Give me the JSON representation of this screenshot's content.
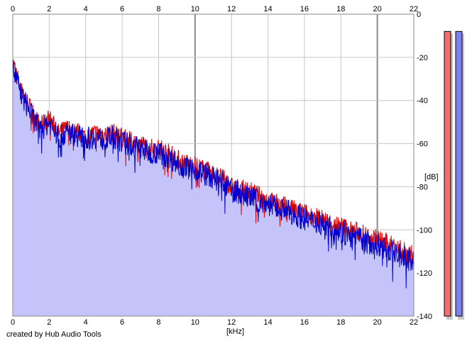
{
  "footer": {
    "credit": "created by Hub Audio Tools"
  },
  "colors": {
    "fill": "#c4c4fb",
    "grid_minor": "#c6c6c6",
    "grid_major": "#8a8a8a",
    "left_channel": "#e00000",
    "right_channel": "#0000d0",
    "meter_left": "#f07070",
    "meter_right": "#8080f0"
  },
  "chart_data": {
    "type": "line",
    "title": "",
    "xlabel": "[kHz]",
    "ylabel": "[dB]",
    "x_ticks_top": [
      "0",
      "2",
      "4",
      "6",
      "8",
      "10",
      "12",
      "14",
      "16",
      "18",
      "20",
      "22"
    ],
    "x_ticks_bottom": [
      "0",
      "2",
      "4",
      "6",
      "8",
      "10",
      "12",
      "14",
      "16",
      "18",
      "20",
      "22"
    ],
    "y_ticks": [
      "0",
      "-20",
      "-40",
      "-60",
      "-80",
      "-100",
      "-120",
      "-140"
    ],
    "xlim": [
      0,
      22
    ],
    "ylim": [
      -140,
      0
    ],
    "grid": true,
    "legend": "none",
    "series": [
      {
        "color": "#e00000",
        "x": [
          0,
          0.5,
          1,
          1.5,
          2,
          2.5,
          3,
          3.5,
          4,
          4.5,
          5,
          5.5,
          6,
          6.5,
          7,
          7.5,
          8,
          8.5,
          9,
          9.5,
          10,
          10.5,
          11,
          11.5,
          12,
          12.5,
          13,
          13.5,
          14,
          14.5,
          15,
          15.5,
          16,
          16.5,
          17,
          17.5,
          18,
          18.5,
          19,
          19.5,
          20,
          20.5,
          21,
          21.5,
          22
        ],
        "y": [
          -22,
          -36,
          -44,
          -52,
          -48,
          -55,
          -53,
          -54,
          -57,
          -55,
          -56,
          -55,
          -57,
          -59,
          -60,
          -62,
          -62,
          -64,
          -67,
          -69,
          -70,
          -72,
          -74,
          -76,
          -80,
          -81,
          -82,
          -84,
          -86,
          -88,
          -89,
          -91,
          -92,
          -94,
          -95,
          -97,
          -98,
          -100,
          -101,
          -103,
          -104,
          -106,
          -108,
          -110,
          -112
        ]
      },
      {
        "color": "#0000d0",
        "x": [
          0,
          0.5,
          1,
          1.5,
          2,
          2.5,
          3,
          3.5,
          4,
          4.5,
          5,
          5.5,
          6,
          6.5,
          7,
          7.5,
          8,
          8.5,
          9,
          9.5,
          10,
          10.5,
          11,
          11.5,
          12,
          12.5,
          13,
          13.5,
          14,
          14.5,
          15,
          15.5,
          16,
          16.5,
          17,
          17.5,
          18,
          18.5,
          19,
          19.5,
          20,
          20.5,
          21,
          21.5,
          22
        ],
        "y": [
          -25,
          -38,
          -46,
          -54,
          -50,
          -57,
          -55,
          -56,
          -58,
          -57,
          -58,
          -57,
          -59,
          -61,
          -62,
          -64,
          -64,
          -66,
          -69,
          -71,
          -72,
          -74,
          -76,
          -78,
          -82,
          -83,
          -85,
          -87,
          -88,
          -90,
          -91,
          -93,
          -95,
          -96,
          -97,
          -99,
          -101,
          -103,
          -104,
          -106,
          -107,
          -109,
          -111,
          -113,
          -115
        ]
      }
    ],
    "level_meters": [
      {
        "color": "#f07070",
        "value_db": -8
      },
      {
        "color": "#8080f0",
        "value_db": -8
      }
    ]
  }
}
